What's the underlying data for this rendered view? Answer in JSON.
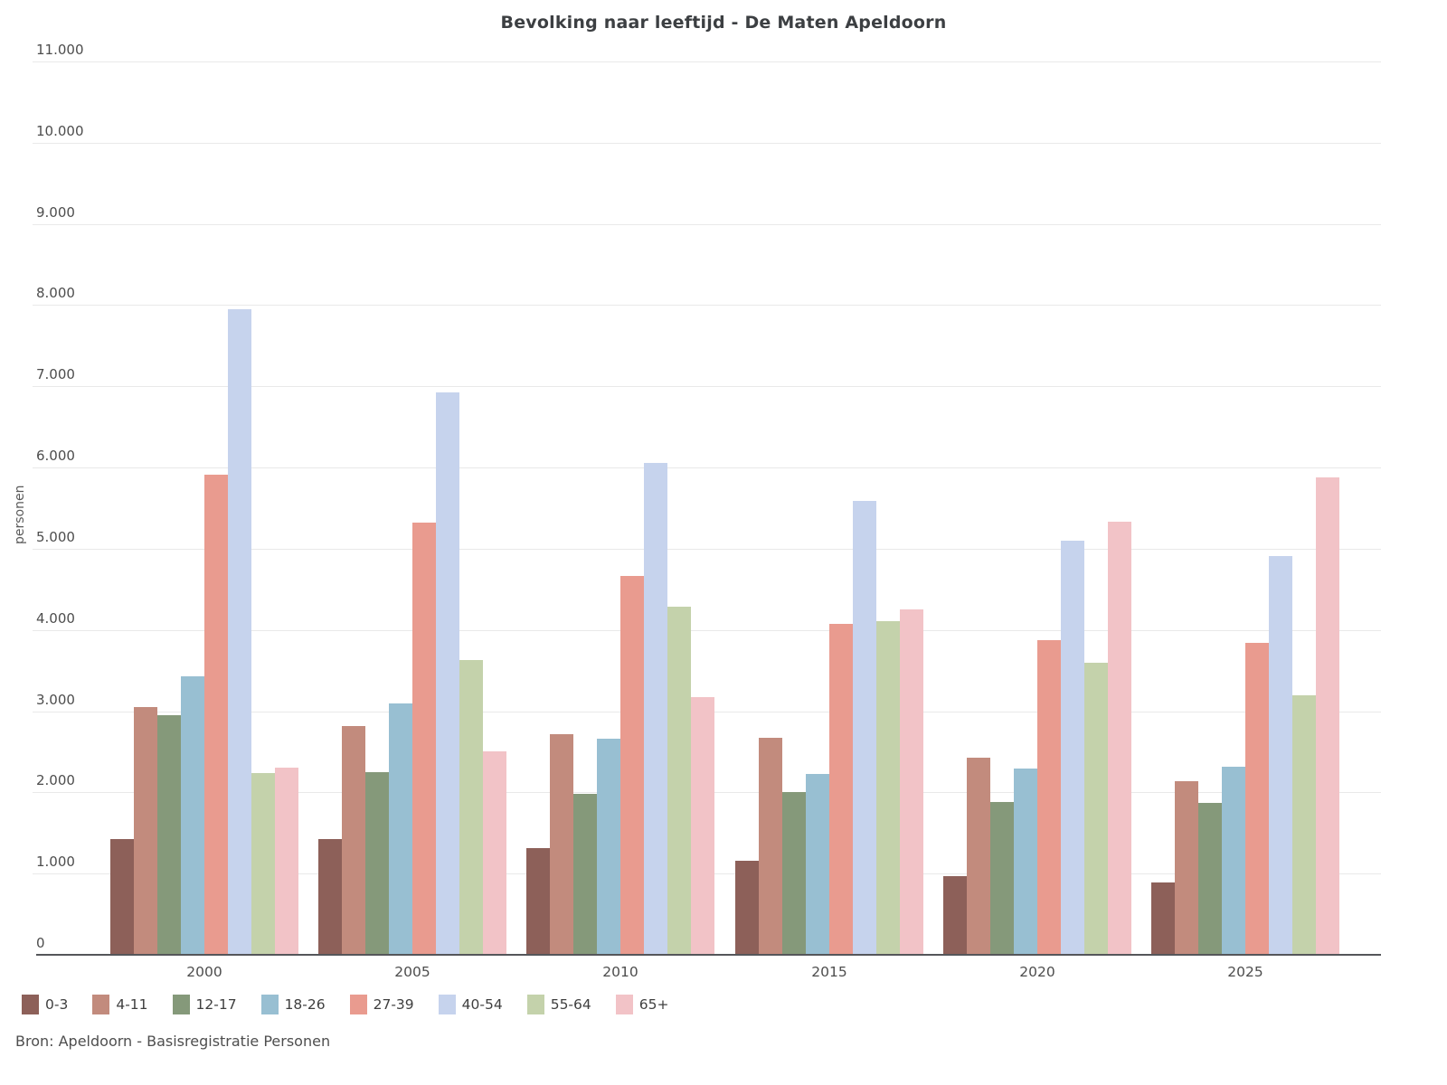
{
  "title": "Bevolking naar leeftijd - De Maten Apeldoorn",
  "source": "Bron: Apeldoorn - Basisregistratie Personen",
  "chart_data": {
    "type": "bar",
    "title": "Bevolking naar leeftijd - De Maten Apeldoorn",
    "xlabel": "",
    "ylabel": "personen",
    "ylim": [
      0,
      11000
    ],
    "ytick_step": 1000,
    "ytick_labels": [
      "0",
      "1.000",
      "2.000",
      "3.000",
      "4.000",
      "5.000",
      "6.000",
      "7.000",
      "8.000",
      "9.000",
      "10.000",
      "11.000"
    ],
    "grid": true,
    "legend_position": "bottom-left",
    "categories": [
      "2000",
      "2005",
      "2010",
      "2015",
      "2020",
      "2025"
    ],
    "series": [
      {
        "name": "0-3",
        "color": "#8d6059",
        "values": [
          1420,
          1430,
          1310,
          1160,
          970,
          890
        ]
      },
      {
        "name": "4-11",
        "color": "#c28b7d",
        "values": [
          3050,
          2820,
          2720,
          2670,
          2430,
          2140
        ]
      },
      {
        "name": "12-17",
        "color": "#85997a",
        "values": [
          2950,
          2250,
          1980,
          2000,
          1880,
          1870
        ]
      },
      {
        "name": "18-26",
        "color": "#98bfd2",
        "values": [
          3430,
          3100,
          2660,
          2230,
          2290,
          2320
        ]
      },
      {
        "name": "27-39",
        "color": "#e99b8f",
        "values": [
          5910,
          5320,
          4660,
          4070,
          3880,
          3840
        ]
      },
      {
        "name": "40-54",
        "color": "#c6d3ed",
        "values": [
          7950,
          6930,
          6060,
          5590,
          5100,
          4910
        ]
      },
      {
        "name": "55-64",
        "color": "#c4d2ab",
        "values": [
          2240,
          3630,
          4290,
          4110,
          3600,
          3190
        ]
      },
      {
        "name": "65+",
        "color": "#f2c3c7",
        "values": [
          2300,
          2510,
          3170,
          4250,
          5330,
          5880
        ]
      }
    ]
  }
}
